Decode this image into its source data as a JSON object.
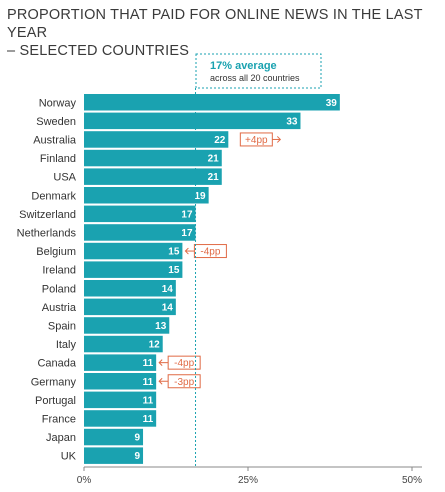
{
  "chart_data": {
    "type": "bar",
    "orientation": "horizontal",
    "title_lines": [
      "PROPORTION THAT PAID FOR ONLINE NEWS IN THE LAST YEAR",
      "– SELECTED COUNTRIES"
    ],
    "categories": [
      "Norway",
      "Sweden",
      "Australia",
      "Finland",
      "USA",
      "Denmark",
      "Switzerland",
      "Netherlands",
      "Belgium",
      "Ireland",
      "Poland",
      "Austria",
      "Spain",
      "Italy",
      "Canada",
      "Germany",
      "Portugal",
      "France",
      "Japan",
      "UK"
    ],
    "values": [
      39,
      33,
      22,
      21,
      21,
      19,
      17,
      17,
      15,
      15,
      14,
      14,
      13,
      12,
      11,
      11,
      11,
      11,
      9,
      9
    ],
    "changes": [
      null,
      null,
      "+4pp",
      null,
      null,
      null,
      null,
      null,
      "-4pp",
      null,
      null,
      null,
      null,
      null,
      "-4pp",
      "-3pp",
      null,
      null,
      null,
      null
    ],
    "change_direction": [
      null,
      null,
      "up",
      null,
      null,
      null,
      null,
      null,
      "down",
      null,
      null,
      null,
      null,
      null,
      "down",
      "down",
      null,
      null,
      null,
      null
    ],
    "xlim": [
      0,
      50
    ],
    "x_ticks": [
      "0%",
      "25%",
      "50%"
    ],
    "x_tick_values": [
      0,
      25,
      50
    ],
    "average": {
      "value": 17,
      "label": "17% average",
      "sublabel": "across all 20 countries"
    },
    "bar_color": "#1aa2b0",
    "annotation_color": "#e06a45",
    "grid": false
  }
}
